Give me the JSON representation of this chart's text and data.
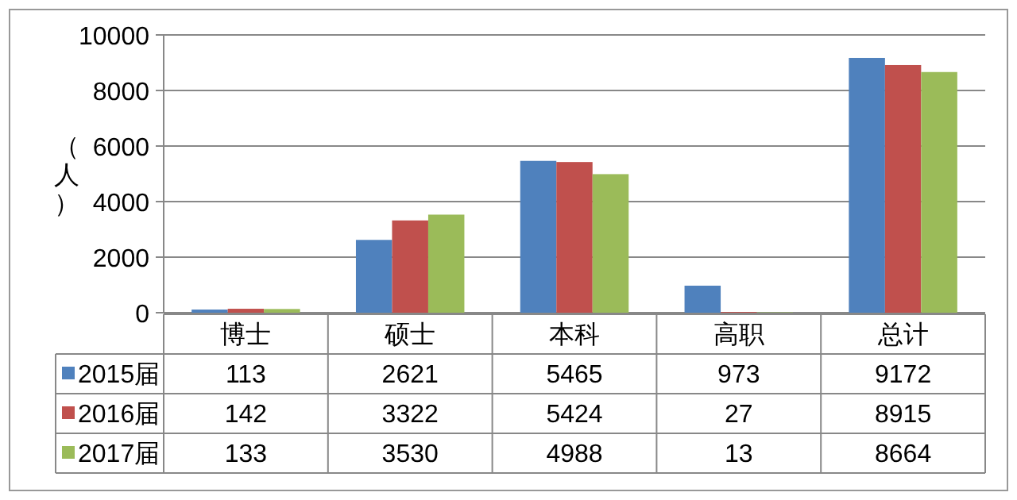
{
  "chart_data": {
    "type": "bar",
    "ylabel": "（人）",
    "categories": [
      "博士",
      "硕士",
      "本科",
      "高职",
      "总计"
    ],
    "series": [
      {
        "name": "2015届",
        "color": "#4f81bd",
        "values": [
          113,
          2621,
          5465,
          973,
          9172
        ]
      },
      {
        "name": "2016届",
        "color": "#c0504d",
        "values": [
          142,
          3322,
          5424,
          27,
          8915
        ]
      },
      {
        "name": "2017届",
        "color": "#9bbb59",
        "values": [
          133,
          3530,
          4988,
          13,
          8664
        ]
      }
    ],
    "ylim": [
      0,
      10000
    ],
    "yticks": [
      0,
      2000,
      4000,
      6000,
      8000,
      10000
    ],
    "grid": "y",
    "data_labels": true,
    "legend": "bottom left"
  }
}
